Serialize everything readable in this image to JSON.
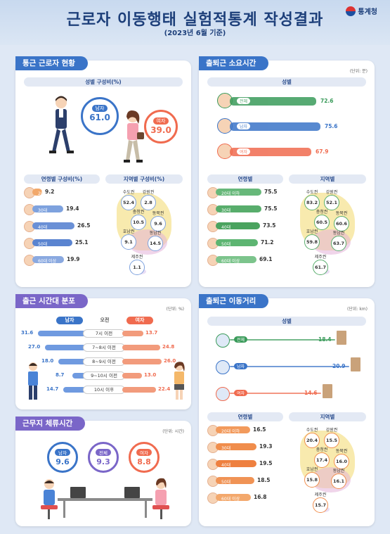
{
  "header": {
    "title": "근로자 이동행태 실험적통계 작성결과",
    "subtitle": "(2023년 6월 기준)",
    "agency": "통계청"
  },
  "colors": {
    "male": "#3a74c8",
    "female": "#f06b4f",
    "total": "#3a9b5a",
    "purple": "#7a66c8",
    "navy": "#1d3f7a"
  },
  "commuters": {
    "title": "통근 근로자 현황",
    "gender_section": "성별 구성비(%)",
    "male_label": "남자",
    "male_value": "61.0",
    "female_label": "여자",
    "female_value": "39.0",
    "age_section": "연령별 구성비(%)",
    "region_section": "지역별 구성비(%)",
    "ages": [
      {
        "label": "20대 이하",
        "value": "9.2",
        "frac": 0.2
      },
      {
        "label": "30대",
        "value": "19.4",
        "frac": 0.65
      },
      {
        "label": "40대",
        "value": "26.5",
        "frac": 0.88
      },
      {
        "label": "50대",
        "value": "25.1",
        "frac": 0.84
      },
      {
        "label": "60대 이상",
        "value": "19.9",
        "frac": 0.66
      }
    ],
    "regions": [
      {
        "name": "수도권",
        "value": "52.4"
      },
      {
        "name": "강원권",
        "value": "2.8"
      },
      {
        "name": "충청권",
        "value": "10.5"
      },
      {
        "name": "동북권",
        "value": "9.6"
      },
      {
        "name": "호남권",
        "value": "9.1"
      },
      {
        "name": "동남권",
        "value": "14.5"
      },
      {
        "name": "제주권",
        "value": "1.1"
      }
    ]
  },
  "commute_time": {
    "title": "출퇴근 소요시간",
    "unit": "(단위: 분)",
    "gender_section": "성별",
    "gender": [
      {
        "label": "전체",
        "value": "72.6",
        "frac": 0.82
      },
      {
        "label": "남자",
        "value": "75.6",
        "frac": 0.86
      },
      {
        "label": "여자",
        "value": "67.9",
        "frac": 0.77
      }
    ],
    "age_section": "연령별",
    "region_section": "지역별",
    "ages": [
      {
        "label": "20대 이하",
        "value": "75.5",
        "frac": 0.9
      },
      {
        "label": "30대",
        "value": "75.5",
        "frac": 0.9
      },
      {
        "label": "40대",
        "value": "73.5",
        "frac": 0.87
      },
      {
        "label": "50대",
        "value": "71.2",
        "frac": 0.84
      },
      {
        "label": "60대 이상",
        "value": "69.1",
        "frac": 0.8
      }
    ],
    "regions": [
      {
        "name": "수도권",
        "value": "83.2"
      },
      {
        "name": "강원권",
        "value": "52.1"
      },
      {
        "name": "충청권",
        "value": "60.5"
      },
      {
        "name": "동북권",
        "value": "60.6"
      },
      {
        "name": "호남권",
        "value": "59.8"
      },
      {
        "name": "동남권",
        "value": "63.7"
      },
      {
        "name": "제주권",
        "value": "61.7"
      }
    ]
  },
  "departure": {
    "title": "출근 시간대 분포",
    "unit": "(단위: %)",
    "male_label": "남자",
    "am_label": "오전",
    "female_label": "여자",
    "rows": [
      {
        "slot": "7시 이전",
        "male": "31.6",
        "female": "13.7",
        "mf": 0.95,
        "ff": 0.41
      },
      {
        "slot": "7~8시 이전",
        "male": "27.0",
        "female": "24.8",
        "mf": 0.81,
        "ff": 0.75
      },
      {
        "slot": "8~9시 이전",
        "male": "18.0",
        "female": "26.0",
        "mf": 0.54,
        "ff": 0.78
      },
      {
        "slot": "9~10시 이전",
        "male": "8.7",
        "female": "13.0",
        "mf": 0.26,
        "ff": 0.39
      },
      {
        "slot": "10시 이후",
        "male": "14.7",
        "female": "22.4",
        "mf": 0.44,
        "ff": 0.67
      }
    ]
  },
  "work_hours": {
    "title": "근무지 체류시간",
    "unit": "(단위: 시간)",
    "items": [
      {
        "label": "남자",
        "value": "9.6"
      },
      {
        "label": "전체",
        "value": "9.3"
      },
      {
        "label": "여자",
        "value": "8.8"
      }
    ]
  },
  "distance": {
    "title": "출퇴근 이동거리",
    "unit": "(단위: km)",
    "gender_section": "성별",
    "gender": [
      {
        "label": "전체",
        "value": "18.4"
      },
      {
        "label": "남자",
        "value": "20.9"
      },
      {
        "label": "여자",
        "value": "14.6"
      }
    ],
    "age_section": "연령별",
    "region_section": "지역별",
    "ages": [
      {
        "label": "20대 이하",
        "value": "16.5",
        "frac": 0.68
      },
      {
        "label": "30대",
        "value": "19.3",
        "frac": 0.8
      },
      {
        "label": "40대",
        "value": "19.5",
        "frac": 0.81
      },
      {
        "label": "50대",
        "value": "18.5",
        "frac": 0.77
      },
      {
        "label": "60대 이상",
        "value": "16.8",
        "frac": 0.7
      }
    ],
    "regions": [
      {
        "name": "수도권",
        "value": "20.4"
      },
      {
        "name": "강원권",
        "value": "15.5"
      },
      {
        "name": "충청권",
        "value": "17.4"
      },
      {
        "name": "동북권",
        "value": "16.0"
      },
      {
        "name": "호남권",
        "value": "15.8"
      },
      {
        "name": "동남권",
        "value": "16.1"
      },
      {
        "name": "제주권",
        "value": "15.7"
      }
    ]
  }
}
